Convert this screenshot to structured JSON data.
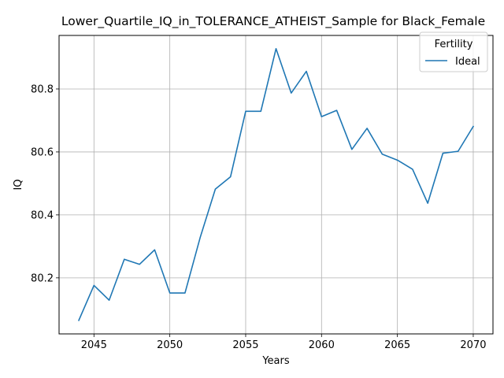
{
  "chart_data": {
    "type": "line",
    "title": "Lower_Quartile_IQ_in_TOLERANCE_ATHEIST_Sample for Black_Female",
    "xlabel": "Years",
    "ylabel": "IQ",
    "xlim": [
      2042.7,
      2071.3
    ],
    "ylim": [
      80.022,
      80.97
    ],
    "xticks": [
      2045,
      2050,
      2055,
      2060,
      2065,
      2070
    ],
    "yticks": [
      80.2,
      80.4,
      80.6,
      80.8
    ],
    "xtick_labels": [
      "2045",
      "2050",
      "2055",
      "2060",
      "2065",
      "2070"
    ],
    "ytick_labels": [
      "80.2",
      "80.4",
      "80.6",
      "80.8"
    ],
    "grid": true,
    "legend": {
      "title": "Fertility",
      "placement": "top-right"
    },
    "series": [
      {
        "name": "Ideal",
        "color": "#1f77b4",
        "x": [
          2044,
          2045,
          2046,
          2047,
          2048,
          2049,
          2050,
          2051,
          2052,
          2053,
          2054,
          2055,
          2056,
          2057,
          2058,
          2059,
          2060,
          2061,
          2062,
          2063,
          2064,
          2065,
          2066,
          2067,
          2068,
          2069,
          2070
        ],
        "values": [
          80.065,
          80.176,
          80.129,
          80.259,
          80.243,
          80.289,
          80.152,
          80.152,
          80.328,
          80.482,
          80.521,
          80.729,
          80.729,
          80.928,
          80.787,
          80.856,
          80.712,
          80.732,
          80.608,
          80.675,
          80.593,
          80.574,
          80.545,
          80.437,
          80.596,
          80.602,
          80.681
        ]
      }
    ]
  }
}
